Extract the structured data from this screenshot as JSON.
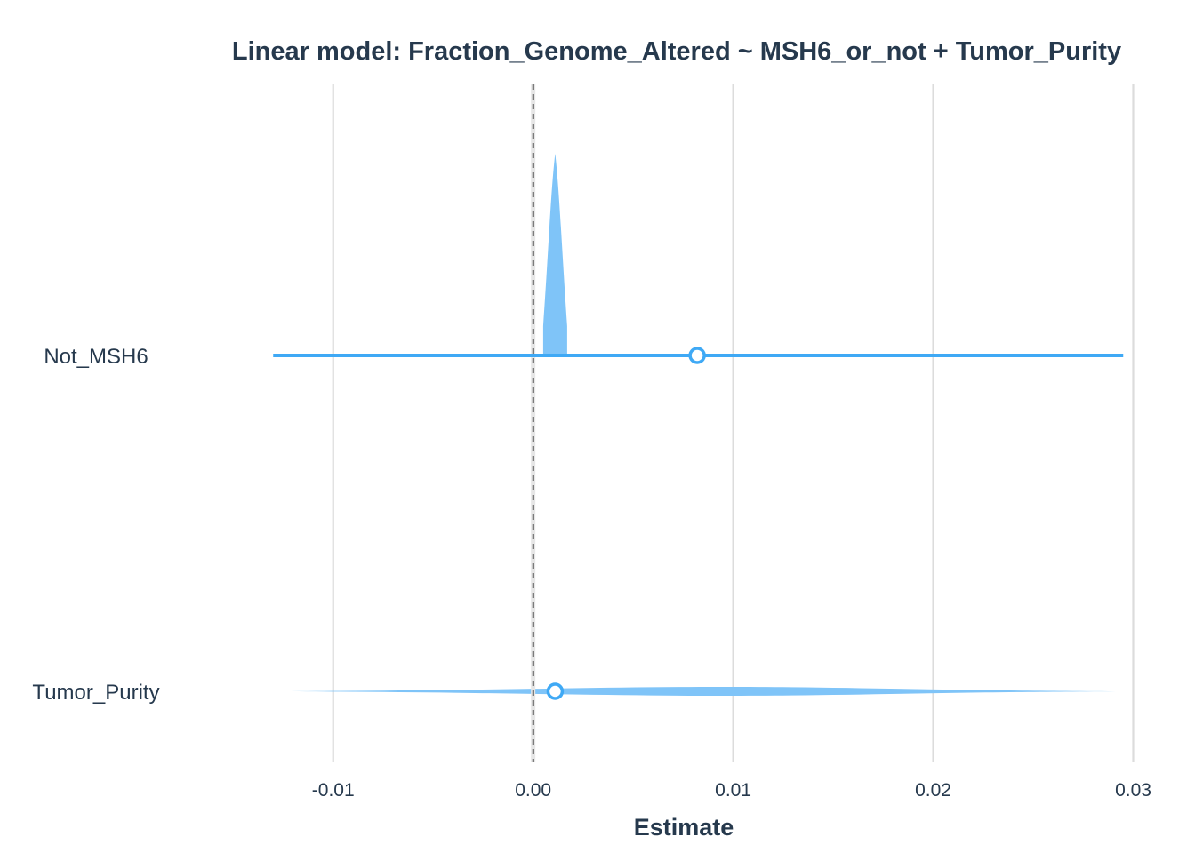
{
  "colors": {
    "accent": "#3fa9f5",
    "accent_light": "#7fc4f8",
    "text": "#26394d",
    "grid": "#dcdcdc"
  },
  "chart_data": {
    "type": "forest",
    "title": "Linear model: Fraction_Genome_Altered ~ MSH6_or_not + Tumor_Purity",
    "xlabel": "Estimate",
    "ylabel": "",
    "xlim": [
      -0.0151,
      0.0302
    ],
    "xticks": [
      -0.01,
      0.0,
      0.01,
      0.02,
      0.03
    ],
    "xtick_labels": [
      "-0.01",
      "0.00",
      "0.01",
      "0.02",
      "0.03"
    ],
    "reference_line": 0.0,
    "grid": true,
    "terms": [
      {
        "label": "Not_MSH6",
        "estimate": 0.0082,
        "ci": [
          -0.013,
          0.0295
        ],
        "distribution": "narrow-peak",
        "dist_center": 0.0011,
        "dist_halfwidth": 0.0006
      },
      {
        "label": "Tumor_Purity",
        "estimate": 0.0011,
        "ci": [
          -0.013,
          0.0295
        ],
        "distribution": "wide-flat",
        "dist_center": 0.0095,
        "dist_halfwidth": 0.02
      }
    ]
  }
}
